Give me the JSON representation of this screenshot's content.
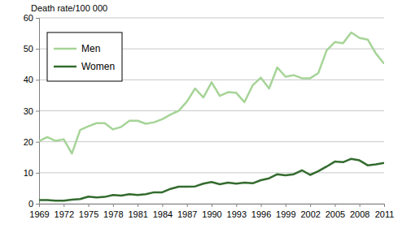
{
  "chart_data": {
    "type": "line",
    "ylabel": "Death rate/100 000",
    "x": [
      1969,
      1970,
      1971,
      1972,
      1973,
      1974,
      1975,
      1976,
      1977,
      1978,
      1979,
      1980,
      1981,
      1982,
      1983,
      1984,
      1985,
      1986,
      1987,
      1988,
      1989,
      1990,
      1991,
      1992,
      1993,
      1994,
      1995,
      1996,
      1997,
      1998,
      1999,
      2000,
      2001,
      2002,
      2003,
      2004,
      2005,
      2006,
      2007,
      2008,
      2009,
      2010,
      2011
    ],
    "series": [
      {
        "name": "Men",
        "color": "#a6d497",
        "values": [
          20.2,
          21.5,
          20.3,
          20.8,
          16.2,
          23.8,
          25,
          26,
          26,
          24,
          24.8,
          26.8,
          26.8,
          25.8,
          26.3,
          27.3,
          28.8,
          30,
          33,
          37.2,
          34.3,
          39.2,
          34.8,
          36,
          35.8,
          32.8,
          38.2,
          40.7,
          37.2,
          44,
          41,
          41.5,
          40.5,
          40.5,
          42.2,
          49.5,
          52.2,
          51.8,
          55.3,
          53.5,
          53,
          48.5,
          45.2
        ]
      },
      {
        "name": "Women",
        "color": "#336b2e",
        "values": [
          1.2,
          1.2,
          1.0,
          1.0,
          1.3,
          1.5,
          2.3,
          2.0,
          2.2,
          2.8,
          2.6,
          3.1,
          2.8,
          3.1,
          3.7,
          3.7,
          4.8,
          5.5,
          5.5,
          5.6,
          6.5,
          7.0,
          6.3,
          6.8,
          6.5,
          6.8,
          6.6,
          7.6,
          8.2,
          9.5,
          9.2,
          9.5,
          10.8,
          9.3,
          10.5,
          12.0,
          13.6,
          13.4,
          14.5,
          14.0,
          12.4,
          12.7,
          13.2
        ]
      }
    ],
    "xlim": [
      1969,
      2011
    ],
    "xticks": [
      1969,
      1972,
      1975,
      1978,
      1981,
      1984,
      1987,
      1990,
      1993,
      1996,
      1999,
      2002,
      2005,
      2008,
      2011
    ],
    "ylim": [
      0,
      60
    ],
    "yticks": [
      0,
      10,
      20,
      30,
      40,
      50,
      60
    ],
    "grid": true,
    "legend": "upper left"
  }
}
